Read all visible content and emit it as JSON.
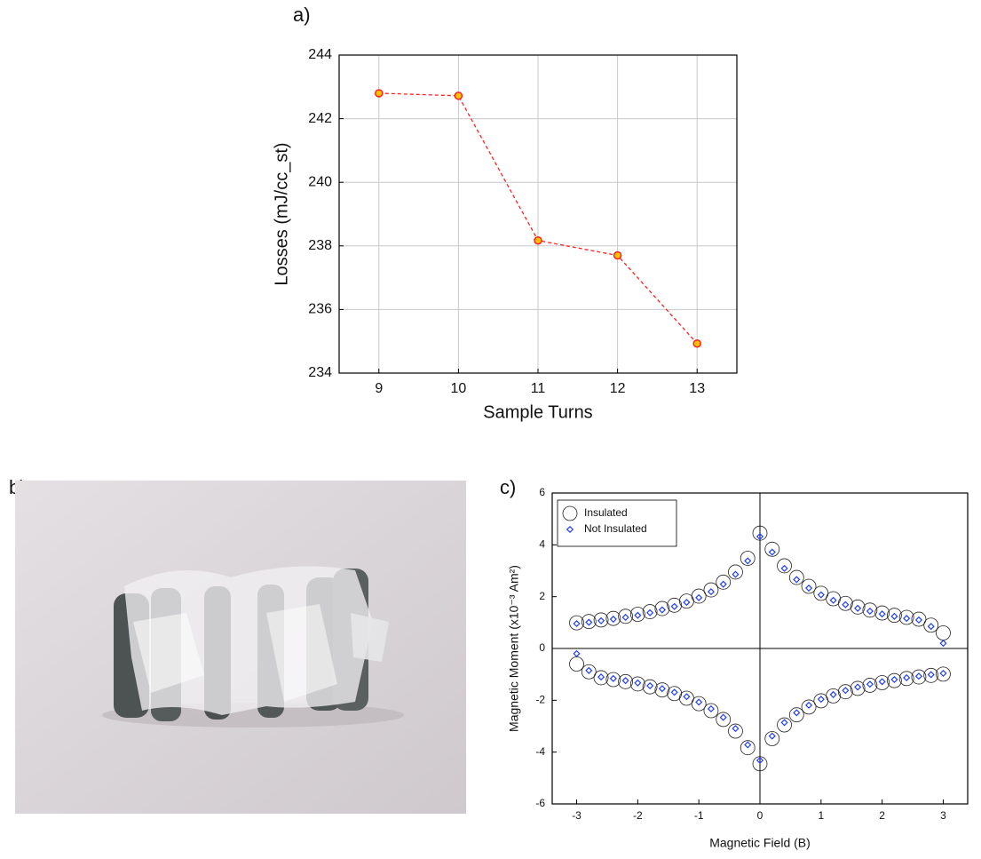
{
  "panel_labels": [
    "a)",
    "b)",
    "c)"
  ],
  "chart_data": [
    {
      "type": "line",
      "x": [
        9,
        10,
        11,
        12,
        13
      ],
      "values": [
        242.8,
        242.72,
        238.17,
        237.7,
        234.93
      ],
      "color": "#ff2020",
      "marker_color": "#ffc000",
      "linestyle": "dashed",
      "xlim": [
        8.5,
        13.5
      ],
      "xticks": [
        9,
        10,
        11,
        12,
        13
      ],
      "ylim": [
        234,
        244
      ],
      "yticks": [
        234,
        236,
        238,
        240,
        242,
        244
      ],
      "xlabel": "Sample Turns",
      "ylabel": "Losses (mJ/cc_st)",
      "grid": true
    },
    {
      "type": "scatter",
      "x": [
        -3,
        -2.8,
        -2.6,
        -2.4,
        -2.2,
        -2,
        -1.8,
        -1.6,
        -1.4,
        -1.2,
        -1,
        -0.8,
        -0.6,
        -0.4,
        -0.2,
        0,
        0.2,
        0.4,
        0.6,
        0.8,
        1,
        1.2,
        1.4,
        1.6,
        1.8,
        2,
        2.2,
        2.4,
        2.6,
        2.8,
        3,
        -3,
        -2.8,
        -2.6,
        -2.4,
        -2.2,
        -2,
        -1.8,
        -1.6,
        -1.4,
        -1.2,
        -1,
        -0.8,
        -0.6,
        -0.4,
        -0.2,
        0,
        0.2,
        0.4,
        0.6,
        0.8,
        1,
        1.2,
        1.4,
        1.6,
        1.8,
        2,
        2.2,
        2.4,
        2.6,
        2.8,
        3
      ],
      "series": [
        {
          "name": "Insulated",
          "color": "#222222",
          "marker": "circle",
          "values": [
            0.99,
            1.04,
            1.1,
            1.16,
            1.24,
            1.32,
            1.42,
            1.54,
            1.67,
            1.83,
            2.02,
            2.26,
            2.56,
            2.95,
            3.48,
            4.45,
            3.83,
            3.19,
            2.74,
            2.4,
            2.13,
            1.92,
            1.74,
            1.6,
            1.48,
            1.37,
            1.28,
            1.2,
            1.13,
            0.9,
            0.6,
            -0.6,
            -0.9,
            -1.13,
            -1.2,
            -1.28,
            -1.37,
            -1.48,
            -1.6,
            -1.74,
            -1.92,
            -2.13,
            -2.4,
            -2.74,
            -3.19,
            -3.83,
            -4.45,
            -3.48,
            -2.95,
            -2.56,
            -2.26,
            -2.02,
            -1.83,
            -1.67,
            -1.54,
            -1.42,
            -1.32,
            -1.24,
            -1.16,
            -1.1,
            -1.04,
            -0.99
          ]
        },
        {
          "name": "Not Insulated",
          "color": "#1f3cff",
          "marker": "diamond",
          "values": [
            0.96,
            1.01,
            1.07,
            1.13,
            1.2,
            1.28,
            1.38,
            1.49,
            1.62,
            1.78,
            1.96,
            2.19,
            2.48,
            2.86,
            3.38,
            4.32,
            3.72,
            3.09,
            2.66,
            2.33,
            2.07,
            1.86,
            1.69,
            1.55,
            1.44,
            1.33,
            1.24,
            1.16,
            1.1,
            0.85,
            0.2,
            -0.2,
            -0.85,
            -1.1,
            -1.16,
            -1.24,
            -1.33,
            -1.44,
            -1.55,
            -1.69,
            -1.86,
            -2.07,
            -2.33,
            -2.66,
            -3.09,
            -3.72,
            -4.32,
            -3.38,
            -2.86,
            -2.48,
            -2.19,
            -1.96,
            -1.78,
            -1.62,
            -1.49,
            -1.38,
            -1.28,
            -1.2,
            -1.13,
            -1.07,
            -1.01,
            -0.96
          ]
        }
      ],
      "xlim": [
        -3.4,
        3.4
      ],
      "xticks": [
        -3,
        -2,
        -1,
        0,
        1,
        2,
        3
      ],
      "ylim": [
        -6,
        6
      ],
      "yticks": [
        -6,
        -4,
        -2,
        0,
        2,
        4,
        6
      ],
      "xlabel": "Magnetic Field (B)",
      "ylabel": "Magnetic Moment (x10⁻³ Am²)",
      "grid": false,
      "zero_lines": true,
      "legend": "upper left"
    }
  ]
}
